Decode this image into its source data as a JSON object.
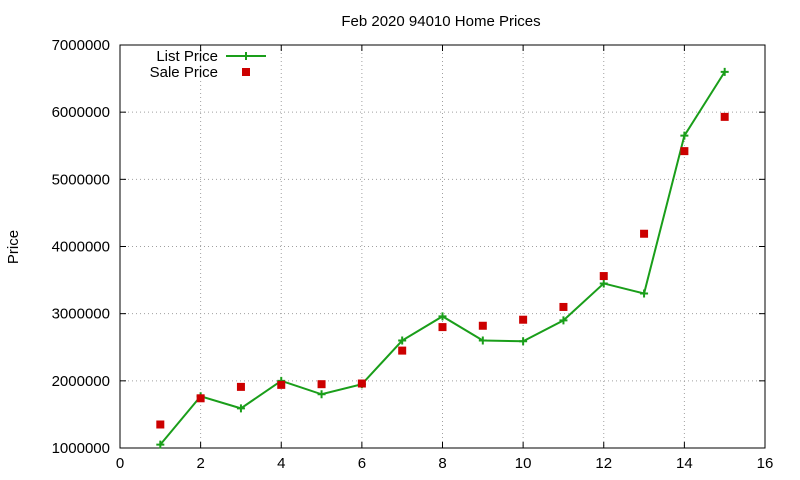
{
  "chart_data": {
    "type": "line",
    "title": "Feb 2020 94010 Home Prices",
    "xlabel": "",
    "ylabel": "Price",
    "xlim": [
      0,
      16
    ],
    "ylim": [
      1000000,
      7000000
    ],
    "x_ticks": [
      0,
      2,
      4,
      6,
      8,
      10,
      12,
      14,
      16
    ],
    "y_ticks": [
      1000000,
      2000000,
      3000000,
      4000000,
      5000000,
      6000000,
      7000000
    ],
    "x_tick_labels": [
      "0",
      "2",
      "4",
      "6",
      "8",
      "10",
      "12",
      "14",
      "16"
    ],
    "y_tick_labels": [
      "1000000",
      "2000000",
      "3000000",
      "4000000",
      "5000000",
      "6000000",
      "7000000"
    ],
    "grid": true,
    "legend_position": "top-left",
    "series": [
      {
        "name": "List Price",
        "style": "line+plus",
        "color": "#1a9e1a",
        "x": [
          1,
          2,
          3,
          4,
          5,
          6,
          7,
          8,
          9,
          10,
          11,
          12,
          13,
          14,
          15
        ],
        "y": [
          1050000,
          1770000,
          1590000,
          2000000,
          1800000,
          1950000,
          2600000,
          2960000,
          2600000,
          2590000,
          2900000,
          3450000,
          3300000,
          5650000,
          6600000
        ]
      },
      {
        "name": "Sale Price",
        "style": "square",
        "color": "#cc0000",
        "x": [
          1,
          2,
          3,
          4,
          5,
          6,
          7,
          8,
          9,
          10,
          11,
          12,
          13,
          14,
          15
        ],
        "y": [
          1350000,
          1740000,
          1910000,
          1940000,
          1950000,
          1960000,
          2450000,
          2800000,
          2820000,
          2910000,
          3100000,
          3560000,
          4190000,
          5420000,
          5930000
        ]
      }
    ]
  }
}
